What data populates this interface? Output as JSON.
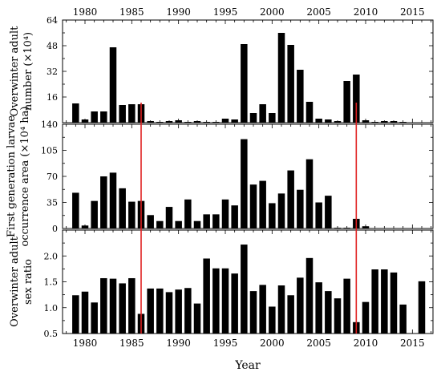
{
  "chart_data": [
    {
      "type": "bar",
      "ylabel_lines": [
        "Overwinter adult",
        "number (×10⁴)"
      ],
      "ylim": [
        0,
        64
      ],
      "yticks": [
        16,
        32,
        48,
        64
      ],
      "top_xticks": [
        1980,
        1985,
        1990,
        1995,
        2000,
        2005,
        2010,
        2015
      ],
      "x": [
        1979,
        1980,
        1981,
        1982,
        1983,
        1984,
        1985,
        1986,
        1987,
        1988,
        1989,
        1990,
        1991,
        1992,
        1993,
        1994,
        1995,
        1996,
        1997,
        1998,
        1999,
        2000,
        2001,
        2002,
        2003,
        2004,
        2005,
        2006,
        2007,
        2008,
        2009,
        2010,
        2011,
        2012,
        2013,
        2014,
        2015,
        2016
      ],
      "values": [
        12,
        2,
        7,
        7,
        47,
        11,
        11.5,
        11.5,
        1,
        0.5,
        1,
        1.5,
        0.5,
        1,
        0.5,
        0.5,
        2.5,
        2,
        49,
        6,
        11.5,
        6,
        56,
        48.5,
        33,
        13,
        2.5,
        2,
        1,
        26,
        30,
        1.5,
        0.5,
        1,
        1,
        0.5,
        0,
        0
      ]
    },
    {
      "type": "bar",
      "ylabel_lines": [
        "First generation larvae",
        "occurrence area (×10⁴ ha)"
      ],
      "ylim": [
        0,
        140
      ],
      "yticks": [
        0,
        35,
        70,
        105
      ],
      "top_tick_label": "140",
      "x": [
        1979,
        1980,
        1981,
        1982,
        1983,
        1984,
        1985,
        1986,
        1987,
        1988,
        1989,
        1990,
        1991,
        1992,
        1993,
        1994,
        1995,
        1996,
        1997,
        1998,
        1999,
        2000,
        2001,
        2002,
        2003,
        2004,
        2005,
        2006,
        2007,
        2008,
        2009,
        2010,
        2011,
        2012,
        2013,
        2014,
        2015,
        2016
      ],
      "values": [
        48,
        4,
        37,
        70,
        75,
        54,
        36,
        37,
        18,
        10,
        29,
        10,
        39,
        10,
        19,
        19,
        39,
        31,
        120,
        59,
        64,
        34,
        47,
        78,
        52,
        93,
        35,
        44,
        1,
        1,
        13,
        3,
        0,
        0,
        0,
        0,
        0,
        0
      ]
    },
    {
      "type": "bar",
      "ylabel_lines": [
        "Overwinter adult",
        "sex ratio"
      ],
      "ylim": [
        0.5,
        2.5
      ],
      "ytick_labels": [
        "0.5",
        "1.0",
        "1.5",
        "2.0"
      ],
      "xlabel": "Year",
      "bottom_xticks": [
        1980,
        1985,
        1990,
        1995,
        2000,
        2005,
        2010,
        2015
      ],
      "x": [
        1979,
        1980,
        1981,
        1982,
        1983,
        1984,
        1985,
        1986,
        1987,
        1988,
        1989,
        1990,
        1991,
        1992,
        1993,
        1994,
        1995,
        1996,
        1997,
        1998,
        1999,
        2000,
        2001,
        2002,
        2003,
        2004,
        2005,
        2006,
        2007,
        2008,
        2009,
        2010,
        2011,
        2012,
        2013,
        2014,
        2015,
        2016
      ],
      "values": [
        1.24,
        1.31,
        1.1,
        1.57,
        1.56,
        1.47,
        1.57,
        0.88,
        1.37,
        1.37,
        1.3,
        1.35,
        1.38,
        1.08,
        1.95,
        1.76,
        1.76,
        1.66,
        2.22,
        1.32,
        1.44,
        1.02,
        1.43,
        1.24,
        1.58,
        1.96,
        1.49,
        1.32,
        1.18,
        1.56,
        0.72,
        1.11,
        1.74,
        1.74,
        1.68,
        1.06,
        null,
        1.51
      ]
    }
  ],
  "vlines": {
    "years": [
      1986,
      2009
    ],
    "color": "#e02020"
  },
  "colors": {
    "bar": "#000000",
    "axis": "#000000"
  }
}
